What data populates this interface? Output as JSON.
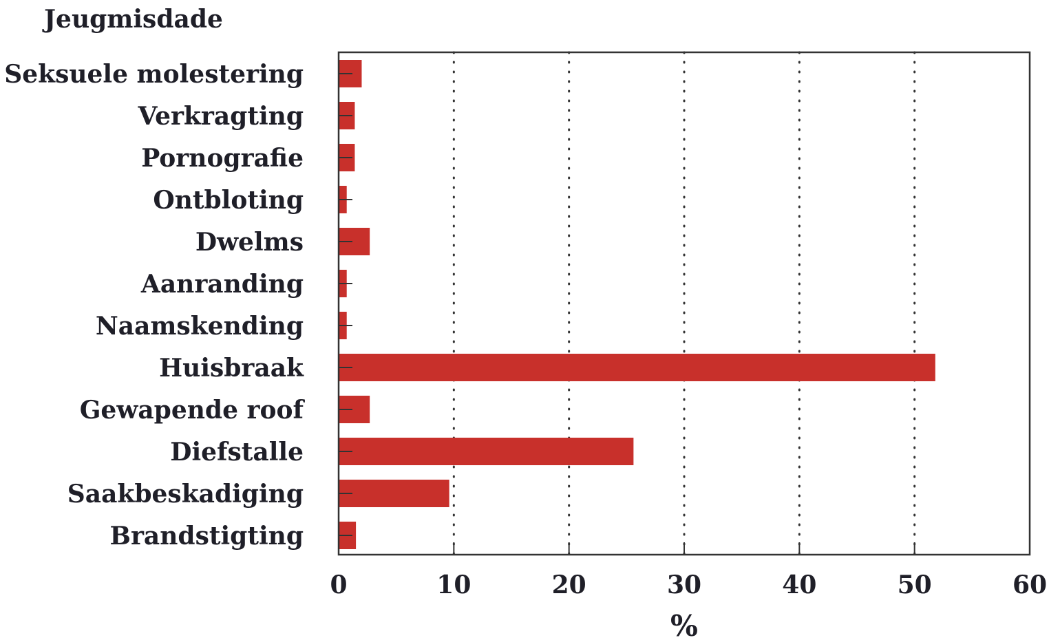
{
  "chart_data": {
    "type": "bar",
    "orientation": "horizontal",
    "ylabel": "Jeugmisdade",
    "xlabel": "%",
    "xlim": [
      0,
      60
    ],
    "xticks": [
      0,
      10,
      20,
      30,
      40,
      50,
      60
    ],
    "grid": "vertical dotted",
    "categories": [
      "Seksuele molestering",
      "Verkragting",
      "Pornografie",
      "Ontbloting",
      "Dwelms",
      "Aanranding",
      "Naamskending",
      "Huisbraak",
      "Gewapende roof",
      "Diefstalle",
      "Saakbeskadiging",
      "Brandstigting"
    ],
    "values": [
      2.0,
      1.4,
      1.4,
      0.7,
      2.7,
      0.7,
      0.7,
      51.8,
      2.7,
      25.6,
      9.6,
      1.5
    ],
    "bar_color": "#c8302b"
  }
}
